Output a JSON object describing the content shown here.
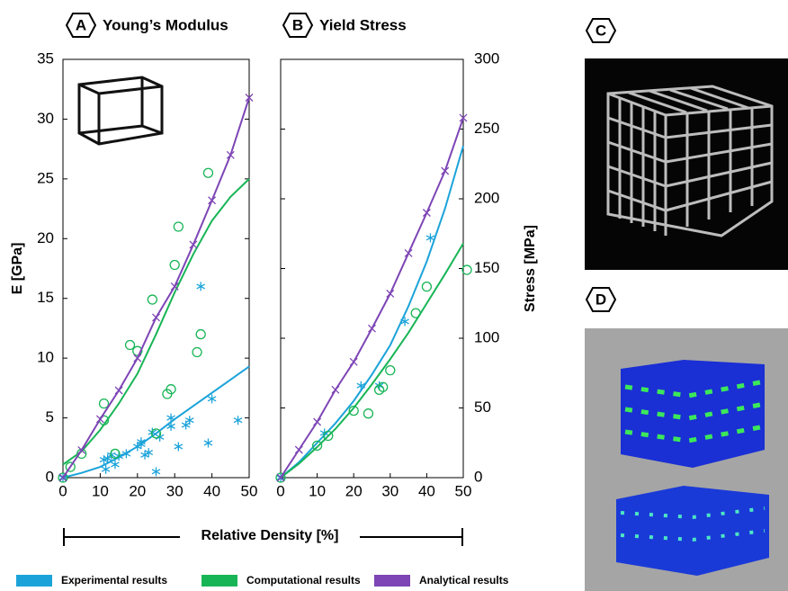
{
  "chart_data": [
    {
      "type": "scatter",
      "panel": "A",
      "title": "Young’s Modulus",
      "ylabel": "E [GPa]",
      "yaxis_position": "left",
      "xlim": [
        0,
        50
      ],
      "xticks": [
        0,
        10,
        20,
        30,
        40,
        50
      ],
      "ylim": [
        0,
        35
      ],
      "yticks": [
        0,
        5,
        10,
        15,
        20,
        25,
        30,
        35
      ],
      "series": [
        {
          "name": "Experimental results",
          "color": "#1ba3d9",
          "marker": "asterisk",
          "x": [
            0,
            11,
            11.5,
            12,
            13,
            14,
            15,
            17,
            20,
            21,
            21,
            22,
            23,
            24,
            25,
            26,
            29,
            29,
            31,
            33,
            34,
            37,
            39,
            40,
            47
          ],
          "values": [
            0,
            1.5,
            0.7,
            1.6,
            1.9,
            1.1,
            1.8,
            2.0,
            2.6,
            3.0,
            2.8,
            1.9,
            2.1,
            3.8,
            0.5,
            3.4,
            4.3,
            5.0,
            2.6,
            4.4,
            4.8,
            16,
            2.9,
            6.6,
            4.8
          ],
          "fit": {
            "x": [
              0,
              5,
              10,
              15,
              20,
              25,
              30,
              35,
              40,
              45,
              50
            ],
            "values": [
              0,
              0.4,
              0.9,
              1.7,
              2.6,
              3.7,
              4.9,
              6.0,
              7.1,
              8.2,
              9.3
            ]
          }
        },
        {
          "name": "Computational results",
          "color": "#18b556",
          "marker": "circle",
          "x": [
            0,
            2,
            5,
            11,
            11,
            14,
            18,
            20,
            24,
            25,
            28,
            29,
            30,
            31,
            36,
            37,
            39
          ],
          "values": [
            0,
            0.9,
            2.0,
            4.8,
            6.2,
            2.0,
            11.1,
            10.6,
            14.9,
            3.7,
            7.0,
            7.4,
            17.8,
            21,
            10.5,
            12,
            25.5
          ],
          "fit": {
            "x": [
              0,
              5,
              10,
              15,
              20,
              25,
              30,
              35,
              40,
              45,
              50
            ],
            "values": [
              1.1,
              2.2,
              4.0,
              6.2,
              8.7,
              12.0,
              15.5,
              18.7,
              21.5,
              23.5,
              25.0
            ]
          }
        },
        {
          "name": "Analytical results",
          "color": "#7d45b5",
          "marker": "x",
          "x": [
            0,
            5,
            10,
            15,
            20,
            25,
            30,
            35,
            40,
            45,
            50
          ],
          "values": [
            0,
            2.3,
            4.9,
            7.3,
            10.0,
            13.4,
            16.0,
            19.5,
            23.2,
            27.0,
            31.8
          ],
          "fit": {
            "x": [
              0,
              5,
              10,
              15,
              20,
              25,
              30,
              35,
              40,
              45,
              50
            ],
            "values": [
              0,
              2.3,
              4.9,
              7.3,
              10.0,
              13.4,
              16.0,
              19.5,
              23.2,
              27.0,
              31.8
            ]
          }
        }
      ]
    },
    {
      "type": "scatter",
      "panel": "B",
      "title": "Yield Stress",
      "ylabel": "Stress [MPa]",
      "yaxis_position": "right",
      "xlim": [
        0,
        50
      ],
      "xticks": [
        0,
        10,
        20,
        30,
        40,
        50
      ],
      "ylim": [
        0,
        300
      ],
      "yticks": [
        0,
        50,
        100,
        150,
        200,
        250,
        300
      ],
      "series": [
        {
          "name": "Experimental results",
          "color": "#1ba3d9",
          "marker": "asterisk",
          "x": [
            0,
            12,
            22,
            27,
            34,
            41
          ],
          "values": [
            0,
            32,
            66,
            66,
            112,
            172
          ],
          "fit": {
            "x": [
              0,
              5,
              10,
              15,
              20,
              25,
              30,
              35,
              40,
              45,
              50
            ],
            "values": [
              0,
              11,
              25,
              39,
              55,
              74,
              95,
              123,
              155,
              193,
              238
            ]
          }
        },
        {
          "name": "Computational results",
          "color": "#18b556",
          "marker": "circle",
          "x": [
            0,
            10,
            13,
            20,
            24,
            27,
            28,
            30,
            37,
            40,
            51
          ],
          "values": [
            0,
            23,
            30,
            48,
            46,
            63,
            65,
            77,
            118,
            137,
            149
          ],
          "fit": {
            "x": [
              0,
              5,
              10,
              15,
              20,
              25,
              30,
              35,
              40,
              45,
              50
            ],
            "values": [
              0,
              10,
              22,
              35,
              50,
              67,
              85,
              104,
              125,
              146,
              168
            ]
          }
        },
        {
          "name": "Analytical results",
          "color": "#7d45b5",
          "marker": "x",
          "x": [
            0,
            5,
            10,
            15,
            20,
            25,
            30,
            35,
            40,
            45,
            50
          ],
          "values": [
            0,
            20,
            40,
            63,
            83,
            107,
            132,
            161,
            190,
            220,
            258
          ],
          "fit": {
            "x": [
              0,
              5,
              10,
              15,
              20,
              25,
              30,
              35,
              40,
              45,
              50
            ],
            "values": [
              0,
              20,
              40,
              63,
              83,
              107,
              132,
              161,
              190,
              220,
              258
            ]
          }
        }
      ]
    }
  ],
  "shared_x_label": "Relative Density [%]",
  "images": [
    {
      "panel": "C"
    },
    {
      "panel": "D"
    }
  ]
}
